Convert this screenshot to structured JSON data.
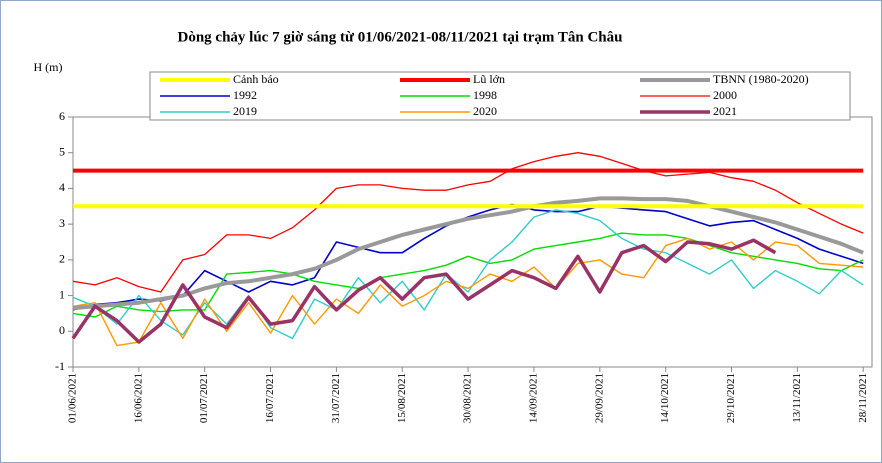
{
  "chart_data": {
    "type": "line",
    "title": "Dòng chảy lúc 7 giờ sáng từ 01/06/2021-08/11/2021 tại trạm Tân Châu",
    "y_label": "H (m)",
    "x": [
      "01/06/2021",
      "06/06/2021",
      "11/06/2021",
      "16/06/2021",
      "21/06/2021",
      "26/06/2021",
      "01/07/2021",
      "06/07/2021",
      "11/07/2021",
      "16/07/2021",
      "21/07/2021",
      "26/07/2021",
      "31/07/2021",
      "05/08/2021",
      "10/08/2021",
      "15/08/2021",
      "20/08/2021",
      "25/08/2021",
      "30/08/2021",
      "04/09/2021",
      "09/09/2021",
      "14/09/2021",
      "19/09/2021",
      "24/09/2021",
      "29/09/2021",
      "04/10/2021",
      "09/10/2021",
      "14/10/2021",
      "19/10/2021",
      "24/10/2021",
      "29/10/2021",
      "03/11/2021",
      "08/11/2021",
      "13/11/2021",
      "18/11/2021",
      "23/11/2021",
      "28/11/2021"
    ],
    "xlim": [
      "01/06/2021",
      "30/11/2021"
    ],
    "xticks": [
      "01/06/2021",
      "16/06/2021",
      "01/07/2021",
      "16/07/2021",
      "31/07/2021",
      "15/08/2021",
      "30/08/2021",
      "14/09/2021",
      "29/09/2021",
      "14/10/2021",
      "29/10/2021",
      "13/11/2021",
      "28/11/2021"
    ],
    "ylim": [
      -1,
      6
    ],
    "yticks": [
      -1,
      0,
      1,
      2,
      3,
      4,
      5,
      6
    ],
    "series": [
      {
        "name": "Cảnh báo",
        "color": "#ffff00",
        "values": [
          3.5,
          3.5,
          3.5,
          3.5,
          3.5,
          3.5,
          3.5,
          3.5,
          3.5,
          3.5,
          3.5,
          3.5,
          3.5,
          3.5,
          3.5,
          3.5,
          3.5,
          3.5,
          3.5,
          3.5,
          3.5,
          3.5,
          3.5,
          3.5,
          3.5,
          3.5,
          3.5,
          3.5,
          3.5,
          3.5,
          3.5,
          3.5,
          3.5,
          3.5,
          3.5,
          3.5,
          3.5
        ]
      },
      {
        "name": "Lũ lớn",
        "color": "#ff0000",
        "values": [
          4.5,
          4.5,
          4.5,
          4.5,
          4.5,
          4.5,
          4.5,
          4.5,
          4.5,
          4.5,
          4.5,
          4.5,
          4.5,
          4.5,
          4.5,
          4.5,
          4.5,
          4.5,
          4.5,
          4.5,
          4.5,
          4.5,
          4.5,
          4.5,
          4.5,
          4.5,
          4.5,
          4.5,
          4.5,
          4.5,
          4.5,
          4.5,
          4.5,
          4.5,
          4.5,
          4.5,
          4.5
        ]
      },
      {
        "name": "TBNN (1980-2020)",
        "color": "#999999",
        "values": [
          0.65,
          0.7,
          0.75,
          0.8,
          0.9,
          1.0,
          1.2,
          1.35,
          1.4,
          1.5,
          1.6,
          1.75,
          2.0,
          2.3,
          2.5,
          2.7,
          2.85,
          3.0,
          3.15,
          3.25,
          3.35,
          3.5,
          3.6,
          3.65,
          3.72,
          3.72,
          3.7,
          3.7,
          3.65,
          3.5,
          3.35,
          3.2,
          3.05,
          2.85,
          2.65,
          2.45,
          2.2
        ]
      },
      {
        "name": "1992",
        "color": "#0000cc",
        "values": [
          0.6,
          0.75,
          0.8,
          0.9,
          0.85,
          1.0,
          1.7,
          1.4,
          1.1,
          1.4,
          1.3,
          1.5,
          2.5,
          2.35,
          2.2,
          2.2,
          2.6,
          2.95,
          3.2,
          3.4,
          3.55,
          3.4,
          3.35,
          3.35,
          3.5,
          3.45,
          3.4,
          3.35,
          3.15,
          2.95,
          3.05,
          3.1,
          2.85,
          2.6,
          2.3,
          2.1,
          1.9
        ]
      },
      {
        "name": "1998",
        "color": "#00dd00",
        "values": [
          0.5,
          0.4,
          0.7,
          0.6,
          0.55,
          0.6,
          0.6,
          1.6,
          1.65,
          1.7,
          1.6,
          1.4,
          1.3,
          1.2,
          1.5,
          1.6,
          1.7,
          1.85,
          2.1,
          1.9,
          2.0,
          2.3,
          2.4,
          2.5,
          2.6,
          2.75,
          2.7,
          2.7,
          2.6,
          2.4,
          2.2,
          2.1,
          2.0,
          1.9,
          1.75,
          1.7,
          2.0
        ]
      },
      {
        "name": "2000",
        "color": "#ff0000",
        "values": [
          1.4,
          1.3,
          1.5,
          1.25,
          1.1,
          2.0,
          2.15,
          2.7,
          2.7,
          2.6,
          2.9,
          3.4,
          4.0,
          4.1,
          4.1,
          4.0,
          3.95,
          3.95,
          4.1,
          4.2,
          4.55,
          4.75,
          4.9,
          5.0,
          4.9,
          4.7,
          4.5,
          4.35,
          4.4,
          4.45,
          4.3,
          4.2,
          3.95,
          3.6,
          3.3,
          3.0,
          2.75
        ]
      },
      {
        "name": "2019",
        "color": "#33cccc",
        "values": [
          0.95,
          0.7,
          0.2,
          1.0,
          0.3,
          -0.1,
          0.8,
          0.2,
          1.0,
          0.1,
          -0.2,
          0.9,
          0.6,
          1.5,
          0.8,
          1.4,
          0.6,
          1.6,
          1.1,
          2.0,
          2.5,
          3.2,
          3.4,
          3.3,
          3.1,
          2.6,
          2.3,
          2.2,
          1.9,
          1.6,
          2.0,
          1.2,
          1.7,
          1.4,
          1.05,
          1.7,
          1.3
        ]
      },
      {
        "name": "2020",
        "color": "#ff9900",
        "values": [
          0.7,
          0.8,
          -0.4,
          -0.3,
          0.8,
          -0.2,
          0.9,
          0.0,
          0.8,
          -0.05,
          1.0,
          0.2,
          0.9,
          0.5,
          1.3,
          0.7,
          1.0,
          1.4,
          1.2,
          1.6,
          1.4,
          1.8,
          1.2,
          1.9,
          2.0,
          1.6,
          1.5,
          2.4,
          2.6,
          2.3,
          2.5,
          2.0,
          2.5,
          2.4,
          1.9,
          1.85,
          1.8
        ]
      },
      {
        "name": "2021",
        "color": "#993366",
        "values": [
          -0.2,
          0.7,
          0.3,
          -0.3,
          0.2,
          1.3,
          0.4,
          0.1,
          0.95,
          0.2,
          0.3,
          1.25,
          0.6,
          1.15,
          1.5,
          0.9,
          1.5,
          1.6,
          0.9,
          1.3,
          1.7,
          1.5,
          1.2,
          2.1,
          1.1,
          2.2,
          2.4,
          1.95,
          2.5,
          2.45,
          2.3,
          2.55,
          2.2,
          null,
          null,
          null,
          null
        ]
      }
    ],
    "widths": [
      4,
      4,
      4,
      1.6,
      1.4,
      1.3,
      1.4,
      1.4,
      3.5
    ],
    "legend_columns": 3
  }
}
